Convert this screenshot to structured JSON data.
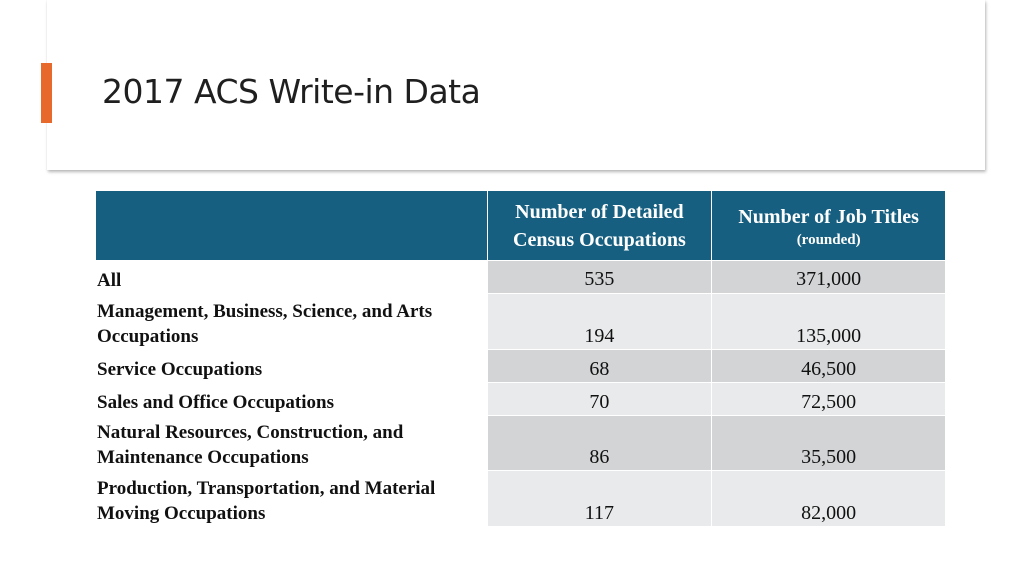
{
  "slide": {
    "title": "2017 ACS Write-in Data",
    "accent_color": "#e8692c",
    "header_color": "#165f80"
  },
  "table": {
    "headers": [
      {
        "line1": "",
        "sub": ""
      },
      {
        "line1": "Number of Detailed Census Occupations",
        "sub": ""
      },
      {
        "line1": "Number of Job Titles",
        "sub": "(rounded)"
      }
    ],
    "rows": [
      {
        "label": "All",
        "occupations": "535",
        "job_titles": "371,000"
      },
      {
        "label": "Management,  Business, Science, and Arts Occupations",
        "occupations": "194",
        "job_titles": "135,000"
      },
      {
        "label": "Service Occupations",
        "occupations": "68",
        "job_titles": "46,500"
      },
      {
        "label": "Sales and Office Occupations",
        "occupations": "70",
        "job_titles": "72,500"
      },
      {
        "label": "Natural Resources, Construction, and Maintenance Occupations",
        "occupations": "86",
        "job_titles": "35,500"
      },
      {
        "label": "Production, Transportation, and Material Moving Occupations",
        "occupations": "117",
        "job_titles": "82,000"
      }
    ]
  }
}
